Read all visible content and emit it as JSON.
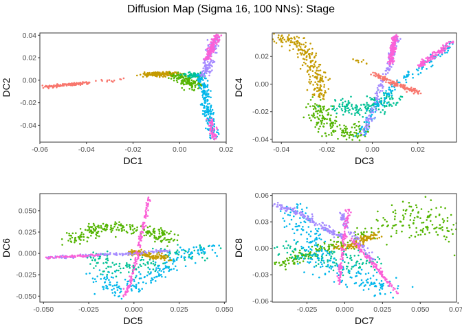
{
  "title": "Diffusion Map (Sigma 16, 100 NNs): Stage",
  "palette": [
    "#F8766D",
    "#C49A00",
    "#53B400",
    "#00C094",
    "#00B6EB",
    "#A58AFF",
    "#FB61D7"
  ],
  "chart_data": [
    {
      "type": "scatter",
      "xlabel": "DC1",
      "ylabel": "DC2",
      "xlim": [
        -0.06,
        0.02
      ],
      "ylim": [
        -0.055,
        0.042
      ],
      "xticks": [
        -0.06,
        -0.04,
        -0.02,
        0.0,
        0.02
      ],
      "xtick_labels": [
        "-0.06",
        "-0.04",
        "-0.02",
        "0.00",
        "0.02"
      ],
      "yticks": [
        -0.04,
        -0.02,
        0.0,
        0.02,
        0.04
      ],
      "ytick_labels": [
        "-0.04",
        "-0.02",
        "0.00",
        "0.02",
        "0.04"
      ],
      "grid": false,
      "clusters": [
        {
          "color": 0,
          "n": 130,
          "path": [
            [
              -0.058,
              -0.006
            ],
            [
              -0.048,
              -0.004
            ],
            [
              -0.038,
              -0.002
            ]
          ],
          "spread": [
            0.0006,
            0.0006
          ]
        },
        {
          "color": 0,
          "n": 12,
          "path": [
            [
              -0.038,
              -0.002
            ],
            [
              -0.022,
              0.003
            ]
          ],
          "spread": [
            0.0015,
            0.001
          ]
        },
        {
          "color": 1,
          "n": 150,
          "path": [
            [
              -0.014,
              0.005
            ],
            [
              -0.002,
              0.006
            ]
          ],
          "spread": [
            0.002,
            0.001
          ]
        },
        {
          "color": 2,
          "n": 140,
          "path": [
            [
              -0.002,
              0.004
            ],
            [
              0.004,
              0.0
            ],
            [
              0.006,
              -0.007
            ]
          ],
          "spread": [
            0.002,
            0.002
          ]
        },
        {
          "color": 3,
          "n": 70,
          "path": [
            [
              0.004,
              0.005
            ],
            [
              0.009,
              0.004
            ]
          ],
          "spread": [
            0.0015,
            0.0012
          ]
        },
        {
          "color": 4,
          "n": 200,
          "path": [
            [
              0.009,
              0.004
            ],
            [
              0.011,
              -0.01
            ],
            [
              0.013,
              -0.035
            ],
            [
              0.015,
              -0.052
            ]
          ],
          "spread": [
            0.001,
            0.001
          ]
        },
        {
          "color": 5,
          "n": 150,
          "path": [
            [
              0.01,
              0.004
            ],
            [
              0.012,
              0.012
            ],
            [
              0.014,
              0.03
            ],
            [
              0.016,
              0.038
            ]
          ],
          "spread": [
            0.0012,
            0.001
          ]
        },
        {
          "color": 6,
          "n": 140,
          "path": [
            [
              0.012,
              0.018
            ],
            [
              0.014,
              0.03
            ],
            [
              0.016,
              0.04
            ]
          ],
          "spread": [
            0.0008,
            0.0008
          ]
        },
        {
          "color": 6,
          "n": 60,
          "path": [
            [
              0.013,
              -0.035
            ],
            [
              0.015,
              -0.052
            ]
          ],
          "spread": [
            0.0008,
            0.0008
          ]
        }
      ]
    },
    {
      "type": "scatter",
      "xlabel": "DC3",
      "ylabel": "DC4",
      "xlim": [
        -0.044,
        0.037
      ],
      "ylim": [
        -0.042,
        0.037
      ],
      "xticks": [
        -0.04,
        -0.02,
        0.0,
        0.02
      ],
      "xtick_labels": [
        "-0.04",
        "-0.02",
        "0.00",
        "0.02"
      ],
      "yticks": [
        -0.04,
        -0.02,
        0.0,
        0.02
      ],
      "ytick_labels": [
        "-0.04",
        "-0.02",
        "0.00",
        "0.02"
      ],
      "grid": false,
      "clusters": [
        {
          "color": 1,
          "n": 220,
          "path": [
            [
              -0.042,
              0.034
            ],
            [
              -0.034,
              0.03
            ],
            [
              -0.028,
              0.022
            ],
            [
              -0.024,
              0.005
            ],
            [
              -0.022,
              -0.01
            ]
          ],
          "spread": [
            0.002,
            0.002
          ]
        },
        {
          "color": 1,
          "n": 10,
          "path": [
            [
              -0.008,
              0.018
            ],
            [
              -0.002,
              0.014
            ]
          ],
          "spread": [
            0.001,
            0.001
          ]
        },
        {
          "color": 2,
          "n": 180,
          "path": [
            [
              -0.025,
              -0.015
            ],
            [
              -0.02,
              -0.03
            ],
            [
              -0.012,
              -0.036
            ],
            [
              -0.004,
              -0.032
            ]
          ],
          "spread": [
            0.003,
            0.003
          ]
        },
        {
          "color": 3,
          "n": 170,
          "path": [
            [
              -0.016,
              -0.016
            ],
            [
              -0.008,
              -0.018
            ],
            [
              0.002,
              -0.015
            ],
            [
              0.01,
              -0.008
            ]
          ],
          "spread": [
            0.003,
            0.003
          ]
        },
        {
          "color": 4,
          "n": 160,
          "path": [
            [
              -0.005,
              -0.038
            ],
            [
              0.0,
              -0.02
            ],
            [
              0.01,
              0.0
            ],
            [
              0.02,
              0.01
            ],
            [
              0.035,
              0.03
            ]
          ],
          "spread": [
            0.0012,
            0.0012
          ]
        },
        {
          "color": 5,
          "n": 150,
          "path": [
            [
              -0.004,
              -0.036
            ],
            [
              0.002,
              -0.01
            ],
            [
              0.007,
              0.012
            ],
            [
              0.011,
              0.035
            ]
          ],
          "spread": [
            0.0008,
            0.0008
          ]
        },
        {
          "color": 6,
          "n": 150,
          "path": [
            [
              0.008,
              0.015
            ],
            [
              0.01,
              0.035
            ]
          ],
          "spread": [
            0.0006,
            0.0006
          ]
        },
        {
          "color": 6,
          "n": 120,
          "path": [
            [
              0.02,
              0.012
            ],
            [
              0.035,
              0.031
            ]
          ],
          "spread": [
            0.0008,
            0.0008
          ]
        },
        {
          "color": 0,
          "n": 140,
          "path": [
            [
              0.0,
              0.008
            ],
            [
              0.01,
              0.0
            ],
            [
              0.021,
              -0.006
            ]
          ],
          "spread": [
            0.0008,
            0.0008
          ]
        }
      ]
    },
    {
      "type": "scatter",
      "xlabel": "DC5",
      "ylabel": "DC6",
      "xlim": [
        -0.052,
        0.051
      ],
      "ylim": [
        -0.057,
        0.07
      ],
      "xticks": [
        -0.05,
        -0.025,
        0.0,
        0.025,
        0.05
      ],
      "xtick_labels": [
        "-0.050",
        "-0.025",
        "0.000",
        "0.025",
        "0.050"
      ],
      "yticks": [
        -0.05,
        -0.025,
        0.0,
        0.025,
        0.05
      ],
      "ytick_labels": [
        "-0.050",
        "-0.025",
        "0.000",
        "0.025",
        "0.050"
      ],
      "grid": false,
      "clusters": [
        {
          "color": 2,
          "n": 230,
          "path": [
            [
              -0.034,
              0.014
            ],
            [
              -0.02,
              0.03
            ],
            [
              -0.005,
              0.03
            ],
            [
              0.01,
              0.025
            ],
            [
              0.02,
              0.015
            ]
          ],
          "spread": [
            0.004,
            0.003
          ]
        },
        {
          "color": 3,
          "n": 140,
          "path": [
            [
              -0.02,
              0.0
            ],
            [
              -0.015,
              -0.02
            ],
            [
              0.0,
              -0.02
            ],
            [
              0.02,
              0.0
            ],
            [
              0.04,
              0.005
            ]
          ],
          "spread": [
            0.005,
            0.005
          ]
        },
        {
          "color": 4,
          "n": 200,
          "path": [
            [
              -0.02,
              -0.02
            ],
            [
              -0.01,
              -0.045
            ],
            [
              0.0,
              -0.04
            ],
            [
              0.03,
              0.002
            ],
            [
              0.047,
              0.007
            ]
          ],
          "spread": [
            0.004,
            0.004
          ]
        },
        {
          "color": 1,
          "n": 130,
          "path": [
            [
              -0.002,
              0.002
            ],
            [
              0.01,
              -0.002
            ],
            [
              0.02,
              -0.007
            ]
          ],
          "spread": [
            0.002,
            0.0015
          ]
        },
        {
          "color": 5,
          "n": 150,
          "path": [
            [
              -0.048,
              -0.005
            ],
            [
              -0.02,
              -0.002
            ],
            [
              0.0,
              0.0
            ],
            [
              0.02,
              0.004
            ]
          ],
          "spread": [
            0.0008,
            0.0008
          ]
        },
        {
          "color": 6,
          "n": 140,
          "path": [
            [
              -0.005,
              -0.05
            ],
            [
              0.0,
              -0.02
            ],
            [
              0.004,
              0.02
            ],
            [
              0.008,
              0.065
            ]
          ],
          "spread": [
            0.0006,
            0.0008
          ]
        },
        {
          "color": 6,
          "n": 60,
          "path": [
            [
              -0.048,
              -0.005
            ],
            [
              -0.02,
              -0.002
            ]
          ],
          "spread": [
            0.0006,
            0.0006
          ]
        }
      ]
    },
    {
      "type": "scatter",
      "xlabel": "DC7",
      "ylabel": "DC8",
      "xlim": [
        -0.048,
        0.074
      ],
      "ylim": [
        -0.061,
        0.062
      ],
      "xticks": [
        -0.025,
        0.0,
        0.025,
        0.05,
        0.075
      ],
      "xtick_labels": [
        "-0.025",
        "0.000",
        "0.025",
        "0.050",
        "0.075"
      ],
      "yticks": [
        -0.06,
        -0.03,
        0.0,
        0.03,
        0.06
      ],
      "ytick_labels": [
        "-0.06",
        "-0.03",
        "0.00",
        "0.03",
        "0.06"
      ],
      "grid": false,
      "clusters": [
        {
          "color": 2,
          "n": 130,
          "path": [
            [
              0.03,
              0.03
            ],
            [
              0.05,
              0.04
            ],
            [
              0.068,
              0.02
            ]
          ],
          "spread": [
            0.008,
            0.01
          ]
        },
        {
          "color": 2,
          "n": 120,
          "path": [
            [
              -0.044,
              -0.02
            ],
            [
              -0.03,
              -0.01
            ],
            [
              -0.015,
              0.0
            ],
            [
              0.0,
              0.005
            ]
          ],
          "spread": [
            0.003,
            0.003
          ]
        },
        {
          "color": 2,
          "n": 40,
          "path": [
            [
              0.0,
              0.01
            ],
            [
              0.02,
              0.02
            ],
            [
              0.03,
              0.025
            ]
          ],
          "spread": [
            0.004,
            0.004
          ]
        },
        {
          "color": 3,
          "n": 120,
          "path": [
            [
              -0.04,
              0.0
            ],
            [
              -0.02,
              -0.01
            ],
            [
              0.0,
              -0.015
            ],
            [
              0.02,
              -0.02
            ]
          ],
          "spread": [
            0.006,
            0.006
          ]
        },
        {
          "color": 4,
          "n": 240,
          "path": [
            [
              -0.04,
              0.05
            ],
            [
              -0.025,
              0.02
            ],
            [
              -0.015,
              -0.02
            ],
            [
              0.0,
              -0.03
            ],
            [
              0.02,
              -0.04
            ],
            [
              0.03,
              -0.05
            ]
          ],
          "spread": [
            0.006,
            0.006
          ]
        },
        {
          "color": 1,
          "n": 130,
          "path": [
            [
              -0.005,
              0.0
            ],
            [
              0.005,
              0.003
            ],
            [
              0.012,
              0.01
            ],
            [
              0.02,
              0.015
            ]
          ],
          "spread": [
            0.002,
            0.002
          ]
        },
        {
          "color": 5,
          "n": 150,
          "path": [
            [
              -0.045,
              0.048
            ],
            [
              -0.03,
              0.04
            ],
            [
              -0.01,
              0.02
            ],
            [
              0.0,
              0.012
            ]
          ],
          "spread": [
            0.0015,
            0.0015
          ]
        },
        {
          "color": 5,
          "n": 80,
          "path": [
            [
              -0.003,
              0.04
            ],
            [
              0.003,
              0.02
            ],
            [
              0.01,
              0.005
            ],
            [
              0.02,
              -0.015
            ]
          ],
          "spread": [
            0.0012,
            0.0012
          ]
        },
        {
          "color": 6,
          "n": 110,
          "path": [
            [
              -0.004,
              -0.04
            ],
            [
              -0.002,
              -0.01
            ],
            [
              0.0,
              0.02
            ],
            [
              0.002,
              0.045
            ]
          ],
          "spread": [
            0.0008,
            0.0008
          ]
        },
        {
          "color": 6,
          "n": 110,
          "path": [
            [
              0.005,
              0.01
            ],
            [
              0.02,
              -0.02
            ],
            [
              0.034,
              -0.05
            ]
          ],
          "spread": [
            0.0008,
            0.0008
          ]
        }
      ]
    }
  ]
}
